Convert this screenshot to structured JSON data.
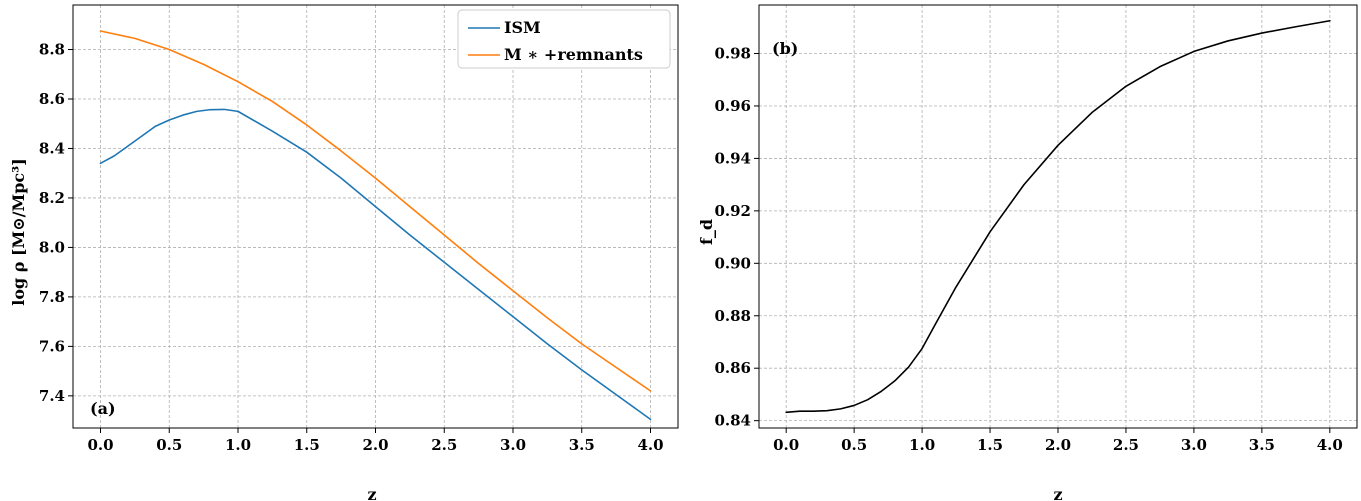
{
  "chart_data": [
    {
      "type": "line",
      "panel_label": "(a)",
      "xlabel": "z",
      "ylabel": "log ρ [M⊙/Mpc³]",
      "xlim": [
        -0.2,
        4.2
      ],
      "ylim": [
        7.27,
        8.98
      ],
      "xticks": [
        0.0,
        0.5,
        1.0,
        1.5,
        2.0,
        2.5,
        3.0,
        3.5,
        4.0
      ],
      "yticks": [
        7.4,
        7.6,
        7.8,
        8.0,
        8.2,
        8.4,
        8.6,
        8.8
      ],
      "xtick_labels": [
        "0.0",
        "0.5",
        "1.0",
        "1.5",
        "2.0",
        "2.5",
        "3.0",
        "3.5",
        "4.0"
      ],
      "ytick_labels": [
        "7.4",
        "7.6",
        "7.8",
        "8.0",
        "8.2",
        "8.4",
        "8.6",
        "8.8"
      ],
      "grid": true,
      "legend_position": "top-right",
      "series": [
        {
          "name": "ISM",
          "color": "#1f77b4",
          "x": [
            0.0,
            0.1,
            0.2,
            0.3,
            0.4,
            0.5,
            0.6,
            0.7,
            0.8,
            0.9,
            1.0,
            1.25,
            1.5,
            1.75,
            2.0,
            2.25,
            2.5,
            2.75,
            3.0,
            3.25,
            3.5,
            3.75,
            4.0
          ],
          "y": [
            8.34,
            8.37,
            8.41,
            8.45,
            8.49,
            8.515,
            8.535,
            8.55,
            8.557,
            8.558,
            8.55,
            8.47,
            8.385,
            8.28,
            8.165,
            8.05,
            7.94,
            7.83,
            7.72,
            7.61,
            7.505,
            7.405,
            7.305
          ]
        },
        {
          "name": "M ∗ +remnants",
          "color": "#ff7f0e",
          "x": [
            0.0,
            0.25,
            0.5,
            0.75,
            1.0,
            1.25,
            1.5,
            1.75,
            2.0,
            2.25,
            2.5,
            2.75,
            3.0,
            3.25,
            3.5,
            3.75,
            4.0
          ],
          "y": [
            8.875,
            8.845,
            8.8,
            8.74,
            8.67,
            8.59,
            8.495,
            8.39,
            8.28,
            8.165,
            8.05,
            7.935,
            7.825,
            7.715,
            7.61,
            7.515,
            7.42
          ]
        }
      ]
    },
    {
      "type": "line",
      "panel_label": "(b)",
      "xlabel": "z",
      "ylabel": "f_d",
      "xlim": [
        -0.2,
        4.2
      ],
      "ylim": [
        0.8372,
        0.9985
      ],
      "xticks": [
        0.0,
        0.5,
        1.0,
        1.5,
        2.0,
        2.5,
        3.0,
        3.5,
        4.0
      ],
      "yticks": [
        0.84,
        0.86,
        0.88,
        0.9,
        0.92,
        0.94,
        0.96,
        0.98
      ],
      "xtick_labels": [
        "0.0",
        "0.5",
        "1.0",
        "1.5",
        "2.0",
        "2.5",
        "3.0",
        "3.5",
        "4.0"
      ],
      "ytick_labels": [
        "0.84",
        "0.86",
        "0.88",
        "0.90",
        "0.92",
        "0.94",
        "0.96",
        "0.98"
      ],
      "grid": true,
      "series": [
        {
          "color": "#000000",
          "x": [
            0.0,
            0.1,
            0.2,
            0.3,
            0.4,
            0.5,
            0.6,
            0.7,
            0.8,
            0.9,
            1.0,
            1.1,
            1.25,
            1.5,
            1.75,
            2.0,
            2.25,
            2.5,
            2.75,
            3.0,
            3.25,
            3.5,
            3.75,
            4.0
          ],
          "y": [
            0.8432,
            0.8436,
            0.8436,
            0.8438,
            0.8445,
            0.8458,
            0.848,
            0.8512,
            0.8552,
            0.8604,
            0.8675,
            0.877,
            0.891,
            0.912,
            0.93,
            0.945,
            0.9575,
            0.9675,
            0.975,
            0.9808,
            0.9848,
            0.9878,
            0.9902,
            0.9925
          ]
        }
      ]
    }
  ]
}
